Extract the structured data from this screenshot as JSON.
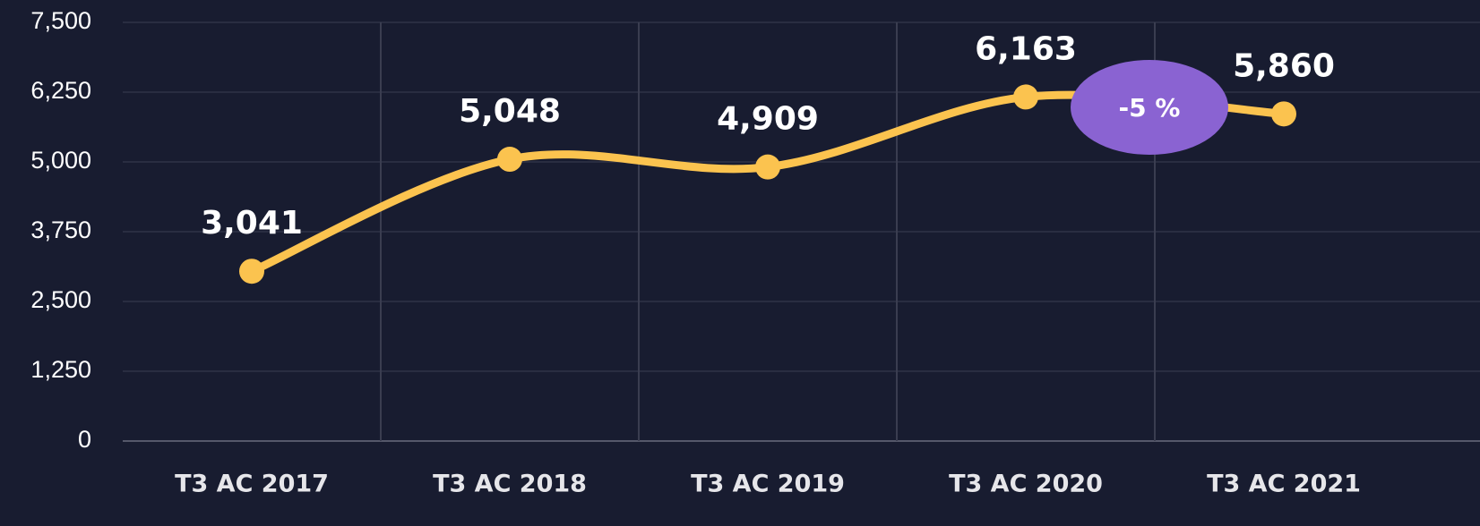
{
  "chart_data": {
    "type": "line",
    "categories": [
      "T3 AC 2017",
      "T3 AC 2018",
      "T3 AC 2019",
      "T3 AC 2020",
      "T3 AC 2021"
    ],
    "series": [
      {
        "name": "Value",
        "color": "#fbc34f",
        "values": [
          3041,
          5048,
          4909,
          6163,
          5860
        ],
        "value_labels": [
          "3,041",
          "5,048",
          "4,909",
          "6,163",
          "5,860"
        ]
      }
    ],
    "ylim": [
      0,
      7500
    ],
    "yticks": [
      0,
      {
        "value": 1250,
        "label": "1,250"
      },
      {
        "value": 2500,
        "label": "2,500"
      },
      {
        "value": 3750,
        "label": "3,750"
      },
      {
        "value": 5000,
        "label": "5,000"
      },
      {
        "value": 6250,
        "label": "6,250"
      },
      {
        "value": 7500,
        "label": "7,500"
      }
    ],
    "grid": true,
    "annotation": "-5 %",
    "annotation_color": "#8a63d2"
  }
}
